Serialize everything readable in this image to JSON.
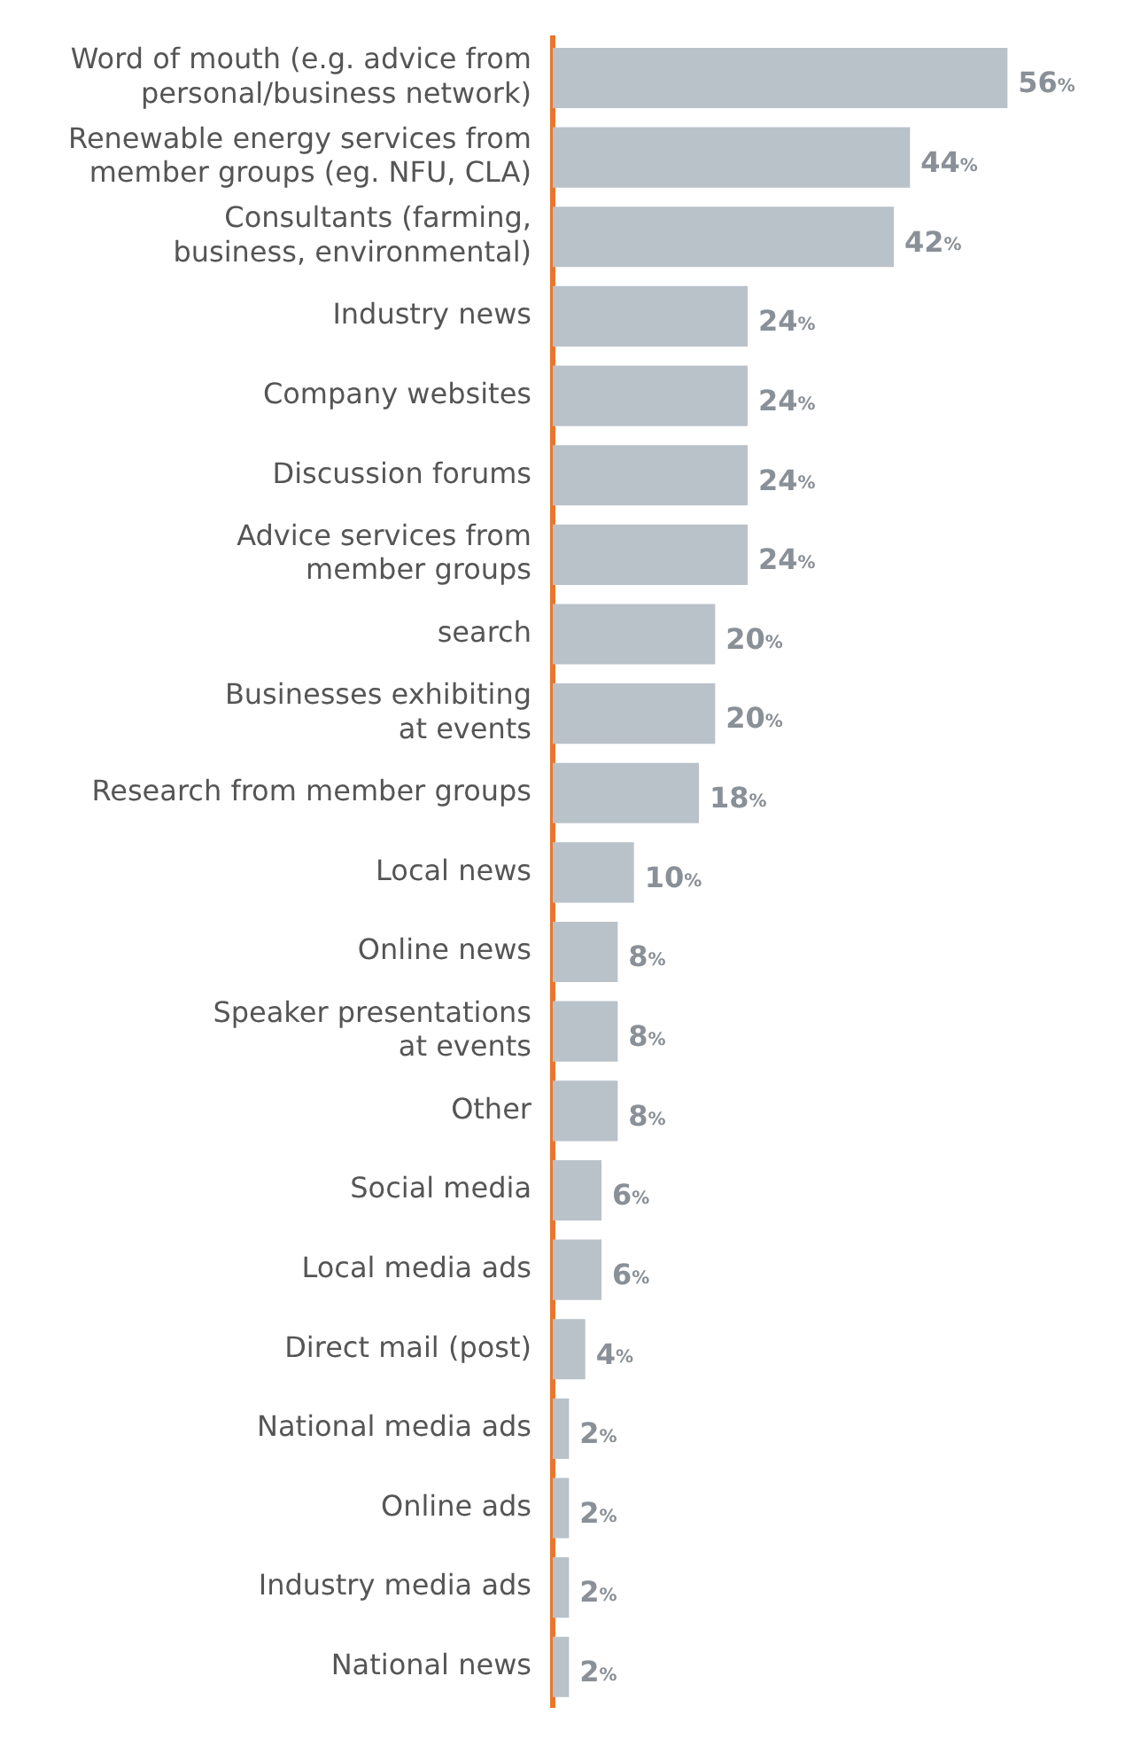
{
  "chart_data": {
    "type": "bar",
    "orientation": "horizontal",
    "categories": [
      "Word of mouth (e.g. advice from\npersonal/business network)",
      "Renewable energy services from\nmember groups (eg. NFU, CLA)",
      "Consultants (farming,\nbusiness, environmental)",
      "Industry news",
      "Company websites",
      "Discussion forums",
      "Advice services from\nmember groups",
      "search",
      "Businesses exhibiting\nat events",
      "Research from member groups",
      "Local news",
      "Online news",
      "Speaker presentations\nat events",
      "Other",
      "Social media",
      "Local media ads",
      "Direct mail (post)",
      "National media ads",
      "Online ads",
      "Industry media ads",
      "National news"
    ],
    "values": [
      56,
      44,
      42,
      24,
      24,
      24,
      24,
      20,
      20,
      18,
      10,
      8,
      8,
      8,
      6,
      6,
      4,
      2,
      2,
      2,
      2
    ],
    "value_labels": [
      "56%",
      "44%",
      "42%",
      "24%",
      "24%",
      "24%",
      "24%",
      "20%",
      "20%",
      "18%",
      "10%",
      "8%",
      "8%",
      "8%",
      "6%",
      "6%",
      "4%",
      "2%",
      "2%",
      "2%",
      "2%"
    ],
    "color": "#b9c1c9",
    "tick_labels": "y"
  }
}
